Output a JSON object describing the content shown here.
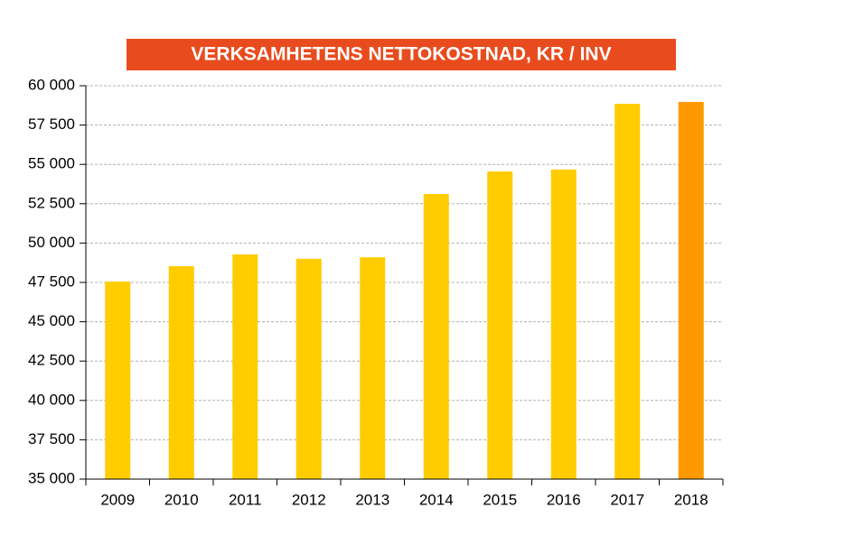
{
  "chart_data": {
    "type": "bar",
    "title": "VERKSAMHETENS NETTOKOSTNAD, KR / INV",
    "categories": [
      "2009",
      "2010",
      "2011",
      "2012",
      "2013",
      "2014",
      "2015",
      "2016",
      "2017",
      "2018"
    ],
    "values": [
      47550,
      48530,
      49280,
      49000,
      49100,
      53120,
      54550,
      54670,
      58850,
      58970
    ],
    "colors": [
      "#ffcc00",
      "#ffcc00",
      "#ffcc00",
      "#ffcc00",
      "#ffcc00",
      "#ffcc00",
      "#ffcc00",
      "#ffcc00",
      "#ffcc00",
      "#ff9900"
    ],
    "ylim": [
      35000,
      60000
    ],
    "yticks": [
      {
        "value": 35000,
        "label": "35 000"
      },
      {
        "value": 37500,
        "label": "37 500"
      },
      {
        "value": 40000,
        "label": "40 000"
      },
      {
        "value": 42500,
        "label": "42 500"
      },
      {
        "value": 45000,
        "label": "45 000"
      },
      {
        "value": 47500,
        "label": "47 500"
      },
      {
        "value": 50000,
        "label": "50 000"
      },
      {
        "value": 52500,
        "label": "52 500"
      },
      {
        "value": 55000,
        "label": "55 000"
      },
      {
        "value": 57500,
        "label": "57 500"
      },
      {
        "value": 60000,
        "label": "60 000"
      }
    ],
    "grid": true
  }
}
